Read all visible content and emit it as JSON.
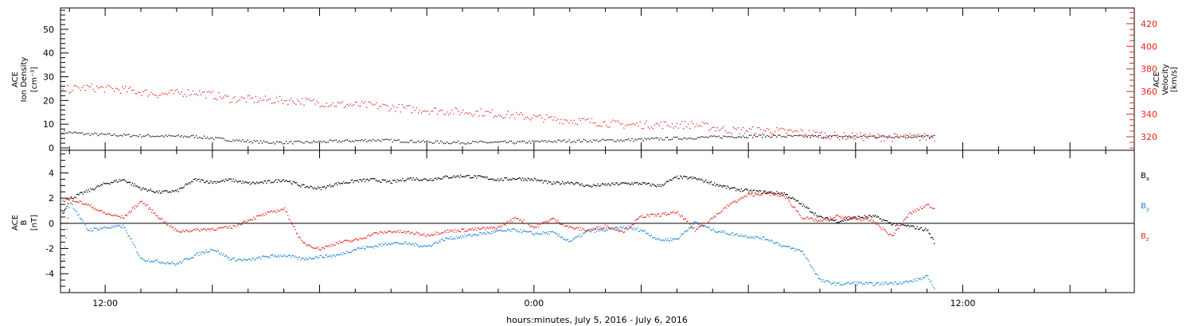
{
  "x_axis": {
    "title": "hours:minutes, July  5, 2016 - July  6, 2016",
    "tick_labels": [
      "12:00",
      "0:00",
      "12:00"
    ]
  },
  "colors": {
    "black": "#000000",
    "red": "#e8231c",
    "blue": "#1f82e0"
  },
  "chart_data": [
    {
      "type": "scatter",
      "panel": "top",
      "xlabel": "hours:minutes, July  5, 2016 - July  6, 2016",
      "x_unit": "hours since 2016-07-05 00:00",
      "xlim": [
        10.75,
        40.8
      ],
      "ylabel_left": [
        "ACE",
        "Ion Density",
        "[cm⁻³]"
      ],
      "ylim_left": [
        -1,
        59
      ],
      "left_ticks": [
        0,
        10,
        20,
        30,
        40,
        50
      ],
      "ylabel_right": [
        "ACE",
        "Velocity",
        "[km/s]"
      ],
      "ylim_right": [
        308,
        434
      ],
      "right_ticks": [
        320,
        340,
        360,
        380,
        400,
        420
      ],
      "series": [
        {
          "name": "Ion Density",
          "color": "#000000",
          "axis": "left",
          "x": [
            10.8,
            11.5,
            12.5,
            13.5,
            14.5,
            15.5,
            16.5,
            17.5,
            18.5,
            19.5,
            20.5,
            21.5,
            22.5,
            23.5,
            24.5,
            25.5,
            26.5,
            27.5,
            28.5,
            29.5,
            30.5,
            31.5,
            32.5,
            33.5,
            34.5,
            35.2
          ],
          "y": [
            7,
            6,
            5.5,
            5.2,
            5,
            3.5,
            2.5,
            2.5,
            3,
            3.5,
            3,
            2.5,
            2.5,
            2.5,
            3,
            3.2,
            3.5,
            4,
            4.5,
            5,
            5.2,
            5,
            5,
            5,
            5,
            5
          ]
        },
        {
          "name": "Velocity",
          "color": "#e8231c",
          "axis": "right",
          "x": [
            10.8,
            11.5,
            12.5,
            13.5,
            14.5,
            15.5,
            16.5,
            17.5,
            18.5,
            19.5,
            20.5,
            21.5,
            22.5,
            23.5,
            24.5,
            25.5,
            26.5,
            27.5,
            28.5,
            29.5,
            30.5,
            31.5,
            32.5,
            33.5,
            34.5,
            35.2
          ],
          "y": [
            362,
            364,
            362,
            358,
            360,
            354,
            353,
            352,
            349,
            348,
            345,
            343,
            342,
            339,
            336,
            334,
            331,
            331,
            331,
            326,
            326,
            324,
            321,
            320,
            320,
            320
          ]
        }
      ]
    },
    {
      "type": "scatter",
      "panel": "bottom",
      "xlabel": "hours:minutes, July  5, 2016 - July  6, 2016",
      "x_unit": "hours since 2016-07-05 00:00",
      "xlim": [
        10.75,
        40.8
      ],
      "ylabel": [
        "ACE",
        "B",
        "[nT]"
      ],
      "ylim": [
        -5.5,
        5.8
      ],
      "ticks": [
        -4,
        -2,
        0,
        2,
        4
      ],
      "zero_line": true,
      "series": [
        {
          "name": "Bx",
          "label": "B",
          "subscript": "x",
          "color": "#000000",
          "x": [
            10.8,
            11.0,
            11.5,
            12.0,
            12.5,
            13.0,
            13.5,
            14.0,
            14.5,
            15.0,
            15.5,
            16.0,
            16.5,
            17.0,
            17.5,
            18.0,
            18.5,
            19.0,
            19.5,
            20.0,
            20.5,
            21.0,
            21.5,
            22.0,
            22.5,
            23.0,
            23.5,
            24.0,
            24.5,
            25.0,
            25.5,
            26.0,
            26.5,
            27.0,
            27.5,
            28.0,
            28.5,
            29.0,
            29.5,
            30.0,
            30.5,
            31.0,
            31.5,
            32.0,
            32.5,
            33.0,
            33.5,
            34.0,
            34.5,
            35.0,
            35.2
          ],
          "y": [
            0.8,
            2.0,
            2.6,
            3.2,
            3.5,
            2.8,
            2.5,
            2.6,
            3.5,
            3.3,
            3.5,
            3.2,
            3.3,
            3.5,
            3.0,
            2.8,
            3.2,
            3.4,
            3.5,
            3.3,
            3.6,
            3.5,
            3.7,
            3.8,
            3.7,
            3.5,
            3.6,
            3.5,
            3.2,
            3.3,
            3.0,
            3.1,
            3.2,
            3.2,
            3.0,
            3.7,
            3.6,
            3.2,
            2.8,
            2.6,
            2.5,
            2.4,
            1.5,
            0.5,
            0.2,
            0.5,
            0.6,
            0.0,
            -0.2,
            -0.5,
            -1.5
          ]
        },
        {
          "name": "By",
          "label": "B",
          "subscript": "y",
          "color": "#1f82e0",
          "x": [
            10.8,
            11.0,
            11.5,
            12.0,
            12.5,
            13.0,
            13.5,
            14.0,
            14.5,
            15.0,
            15.5,
            16.0,
            16.5,
            17.0,
            17.5,
            18.0,
            18.5,
            19.0,
            19.5,
            20.0,
            20.5,
            21.0,
            21.5,
            22.0,
            22.5,
            23.0,
            23.5,
            24.0,
            24.5,
            25.0,
            25.5,
            26.0,
            26.5,
            27.0,
            27.5,
            28.0,
            28.5,
            29.0,
            29.5,
            30.0,
            30.5,
            31.0,
            31.5,
            32.0,
            32.5,
            33.0,
            33.5,
            34.0,
            34.5,
            35.0,
            35.2
          ],
          "y": [
            -3.5,
            1.8,
            -0.5,
            -0.3,
            -0.2,
            -2.8,
            -3.0,
            -3.2,
            -2.5,
            -2.0,
            -2.8,
            -2.9,
            -2.6,
            -2.5,
            -2.8,
            -2.6,
            -2.5,
            -2.0,
            -1.8,
            -1.5,
            -1.6,
            -1.8,
            -1.2,
            -1.0,
            -0.8,
            -0.6,
            -0.5,
            -0.8,
            -0.7,
            -1.4,
            -0.6,
            -0.5,
            -0.3,
            -0.5,
            -1.3,
            -1.2,
            0.1,
            -0.5,
            -0.8,
            -1.0,
            -1.2,
            -1.8,
            -2.2,
            -4.5,
            -4.8,
            -4.7,
            -4.8,
            -4.7,
            -4.6,
            -4.2,
            -5.1
          ]
        },
        {
          "name": "Bz",
          "label": "B",
          "subscript": "z",
          "color": "#e8231c",
          "x": [
            10.8,
            11.0,
            11.5,
            12.0,
            12.5,
            13.0,
            13.5,
            14.0,
            14.5,
            15.0,
            15.5,
            16.0,
            16.5,
            17.0,
            17.5,
            18.0,
            18.5,
            19.0,
            19.5,
            20.0,
            20.5,
            21.0,
            21.5,
            22.0,
            22.5,
            23.0,
            23.5,
            24.0,
            24.5,
            25.0,
            25.5,
            26.0,
            26.5,
            27.0,
            27.5,
            28.0,
            28.5,
            29.0,
            29.5,
            30.0,
            30.5,
            31.0,
            31.5,
            32.0,
            32.5,
            33.0,
            33.5,
            34.0,
            34.5,
            35.0,
            35.2
          ],
          "y": [
            1.8,
            2.0,
            1.5,
            0.8,
            0.5,
            1.8,
            0.5,
            -0.6,
            -0.5,
            -0.4,
            -0.3,
            0.3,
            0.8,
            1.2,
            -1.5,
            -2.0,
            -1.5,
            -1.3,
            -0.8,
            -0.6,
            -0.7,
            -0.9,
            -0.6,
            -0.5,
            -0.4,
            -0.3,
            0.5,
            -0.3,
            0.4,
            -0.3,
            -0.5,
            -0.2,
            -0.6,
            0.6,
            0.7,
            0.9,
            -0.5,
            0.5,
            1.6,
            2.3,
            2.4,
            2.2,
            0.5,
            0.2,
            0.6,
            0.4,
            0.2,
            -1.0,
            0.8,
            1.5,
            1.2
          ]
        }
      ]
    }
  ]
}
